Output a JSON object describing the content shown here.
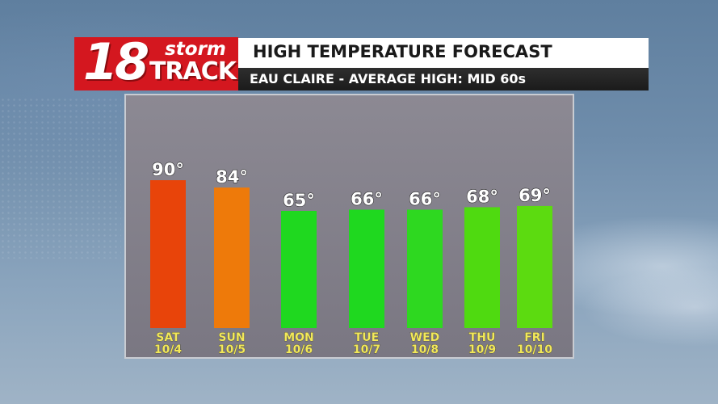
{
  "logo": {
    "number": "18",
    "word1": "storm",
    "word2": "TRACK"
  },
  "header": {
    "title": "HIGH TEMPERATURE FORECAST",
    "subtitle": "EAU CLAIRE - AVERAGE HIGH: MID 60s"
  },
  "colors": {
    "logo_red": "#d4171f",
    "label_yellow": "#f2e85a"
  },
  "chart_data": {
    "type": "bar",
    "categories": [
      "SAT",
      "SUN",
      "MON",
      "TUE",
      "WED",
      "THU",
      "FRI"
    ],
    "dates": [
      "10/4",
      "10/5",
      "10/6",
      "10/7",
      "10/8",
      "10/9",
      "10/10"
    ],
    "values": [
      90,
      84,
      65,
      66,
      66,
      68,
      69
    ],
    "value_labels": [
      "90°",
      "84°",
      "65°",
      "66°",
      "66°",
      "68°",
      "69°"
    ],
    "bar_colors": [
      "#e8440a",
      "#ee7a0a",
      "#1fd81f",
      "#1fd81f",
      "#2ed820",
      "#4fda10",
      "#5cdb10"
    ],
    "grid": false,
    "legend": "none"
  }
}
